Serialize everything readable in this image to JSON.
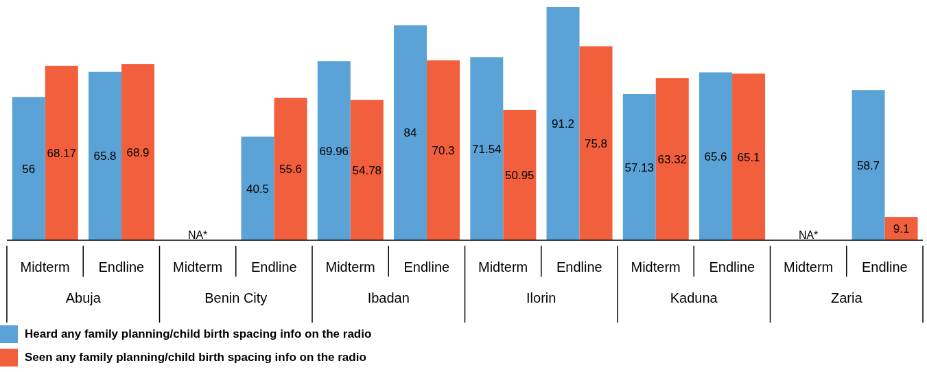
{
  "chart_data": {
    "type": "bar",
    "categories": [
      "Midterm",
      "Endline",
      "Midterm",
      "Endline",
      "Midterm",
      "Endline",
      "Midterm",
      "Endline",
      "Midterm",
      "Endline",
      "Midterm",
      "Endline"
    ],
    "annotations": [
      "Abuja",
      "Benin City",
      "Ibadan",
      "Ilorin",
      "Kaduna",
      "Zaria"
    ],
    "series": [
      {
        "name": "Heard any family planning/child birth spacing info on the radio",
        "color": "#5ba3d6",
        "values": [
          56,
          65.8,
          null,
          40.5,
          69.96,
          84,
          71.54,
          91.2,
          57.13,
          65.6,
          null,
          58.7
        ],
        "value_labels": [
          "56",
          "65.8",
          "NA*",
          "40.5",
          "69.96",
          "84",
          "71.54",
          "91.2",
          "57.13",
          "65.6",
          "NA*",
          "58.7"
        ]
      },
      {
        "name": "Seen any family planning/child birth spacing info on the radio",
        "color": "#f25f3d",
        "values": [
          68.17,
          68.9,
          null,
          55.6,
          54.78,
          70.3,
          50.95,
          75.8,
          63.32,
          65.1,
          null,
          9.1
        ],
        "value_labels": [
          "68.17",
          "68.9",
          null,
          "55.6",
          "54.78",
          "70.3",
          "50.95",
          "75.8",
          "63.32",
          "65.1",
          null,
          "9.1"
        ]
      }
    ],
    "legend": "bottom left"
  }
}
